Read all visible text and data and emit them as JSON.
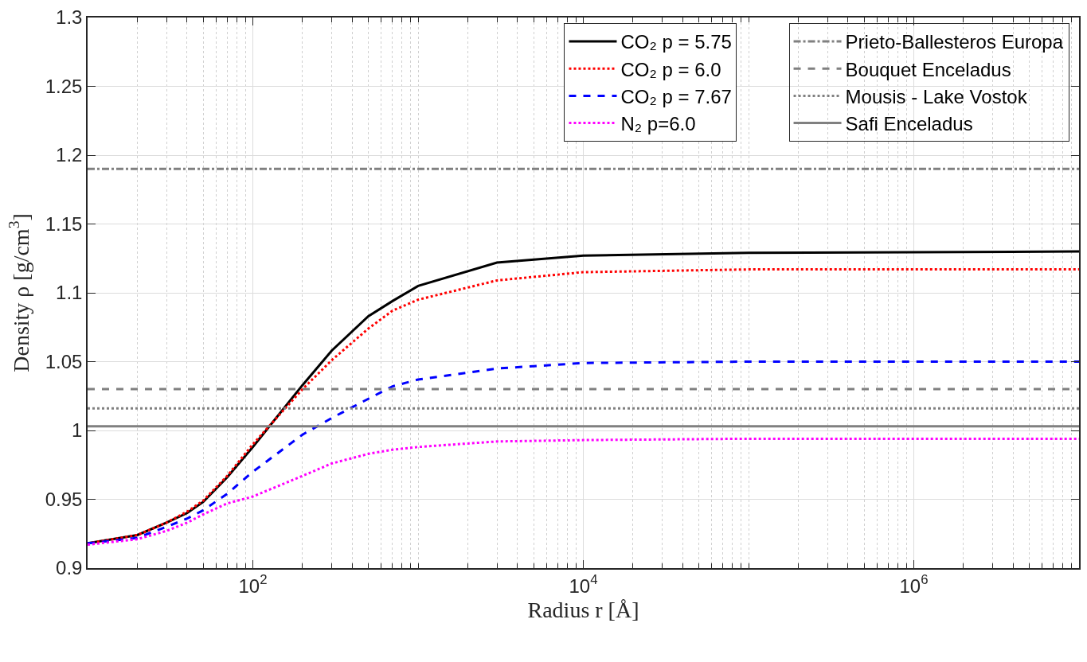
{
  "chart_data": {
    "type": "line",
    "xlabel": "Radius r [Å]",
    "ylabel": "Density ρ [g/cm$^{3}$]",
    "x": [
      10,
      20,
      30,
      40,
      50,
      70,
      100,
      200,
      300,
      500,
      700,
      1000,
      3000,
      10000,
      100000,
      10000000
    ],
    "series": [
      {
        "name": "CO₂ p = 5.75",
        "color": "#000000",
        "line_style": "solid",
        "values": [
          0.918,
          0.924,
          0.933,
          0.94,
          0.948,
          0.966,
          0.988,
          1.033,
          1.058,
          1.083,
          1.094,
          1.105,
          1.122,
          1.127,
          1.129,
          1.13
        ]
      },
      {
        "name": "CO₂ p = 6.0",
        "color": "#ff0000",
        "line_style": "dotted",
        "values": [
          0.918,
          0.924,
          0.933,
          0.941,
          0.949,
          0.967,
          0.99,
          1.03,
          1.051,
          1.074,
          1.087,
          1.095,
          1.109,
          1.115,
          1.117,
          1.117
        ]
      },
      {
        "name": "CO₂ p = 7.67",
        "color": "#0000ff",
        "line_style": "dashed",
        "values": [
          0.918,
          0.922,
          0.93,
          0.936,
          0.942,
          0.954,
          0.97,
          0.997,
          1.009,
          1.023,
          1.032,
          1.037,
          1.045,
          1.049,
          1.05,
          1.05
        ]
      },
      {
        "name": "N₂ p=6.0",
        "color": "#ff00ff",
        "line_style": "dotted",
        "values": [
          0.917,
          0.921,
          0.927,
          0.933,
          0.939,
          0.947,
          0.952,
          0.967,
          0.976,
          0.983,
          0.986,
          0.988,
          0.992,
          0.993,
          0.994,
          0.994
        ]
      }
    ],
    "ref_lines": [
      {
        "axis": "y",
        "value": 1.19,
        "label": "Prieto-Ballesteros Europa",
        "color": "#808080",
        "line_style": "dashdot"
      },
      {
        "axis": "y",
        "value": 1.03,
        "label": "Bouquet Enceladus",
        "color": "#808080",
        "line_style": "dashed"
      },
      {
        "axis": "y",
        "value": 1.016,
        "label": "Mousis - Lake Vostok",
        "color": "#808080",
        "line_style": "dotted"
      },
      {
        "axis": "y",
        "value": 1.003,
        "label": "Safi Enceladus",
        "color": "#808080",
        "line_style": "solid"
      }
    ],
    "log": "x",
    "xlim": [
      10,
      10000000
    ],
    "xticks": [
      {
        "value": 100,
        "label": "10$^{2}$"
      },
      {
        "value": 10000,
        "label": "10$^{4}$"
      },
      {
        "value": 1000000,
        "label": "10$^{6}$"
      }
    ],
    "ylim": [
      0.9,
      1.3
    ],
    "yticks": [
      0.9,
      0.95,
      1,
      1.05,
      1.1,
      1.15,
      1.2,
      1.25,
      1.3
    ],
    "grid": true,
    "marker": "none",
    "legend": "top right"
  }
}
